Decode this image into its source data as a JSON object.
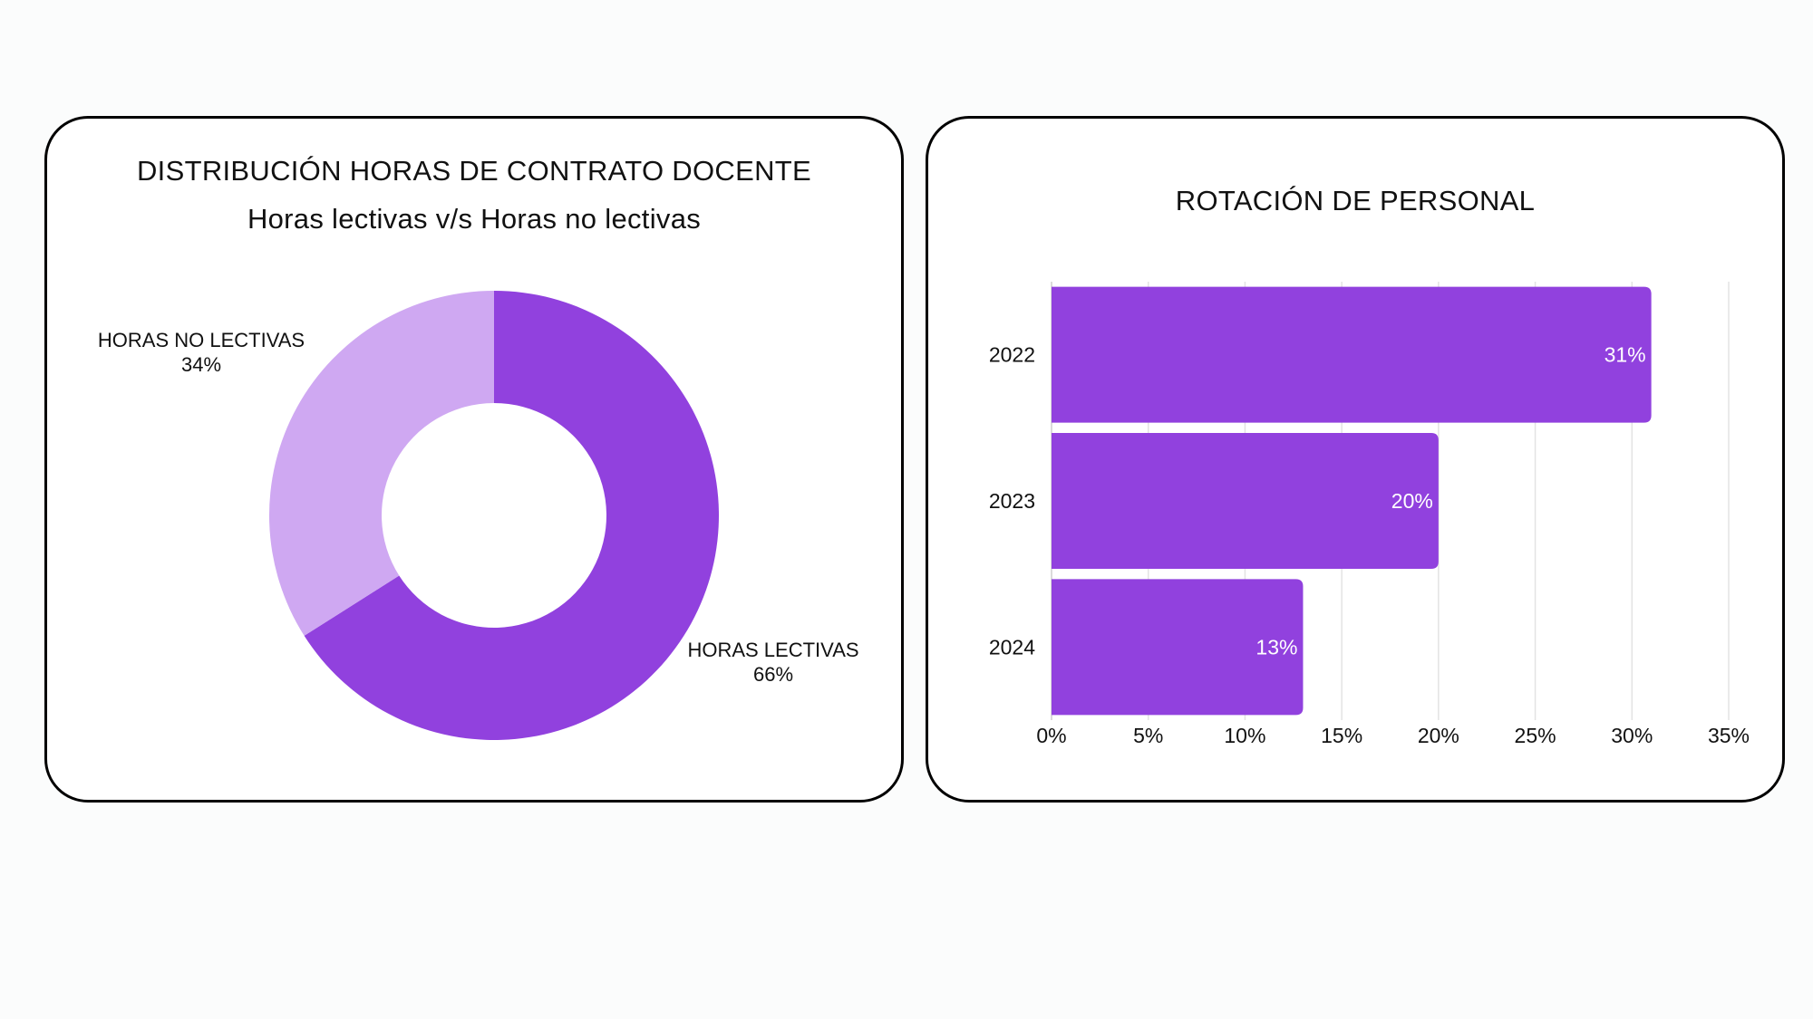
{
  "colors": {
    "primary": "#9141de",
    "secondary": "#cfa8f2",
    "bar_label": "#ffffff",
    "grid": "#e3e3e3",
    "text": "#111111"
  },
  "chart_data": [
    {
      "type": "pie",
      "variant": "donut",
      "title": "DISTRIBUCIÓN HORAS DE CONTRATO DOCENTE",
      "subtitle": "Horas lectivas v/s Horas no lectivas",
      "slices": [
        {
          "label": "HORAS LECTIVAS",
          "value": 66,
          "value_label": "66%",
          "color": "#9141de"
        },
        {
          "label": "HORAS NO LECTIVAS",
          "value": 34,
          "value_label": "34%",
          "color": "#cfa8f2"
        }
      ]
    },
    {
      "type": "bar",
      "orientation": "horizontal",
      "title": "ROTACIÓN DE PERSONAL",
      "categories": [
        "2022",
        "2023",
        "2024"
      ],
      "values": [
        31,
        20,
        13
      ],
      "value_labels": [
        "31%",
        "20%",
        "13%"
      ],
      "xlim": [
        0,
        35
      ],
      "x_ticks": [
        "0%",
        "5%",
        "10%",
        "15%",
        "20%",
        "25%",
        "30%",
        "35%"
      ],
      "grid": true,
      "color": "#9141de"
    }
  ]
}
